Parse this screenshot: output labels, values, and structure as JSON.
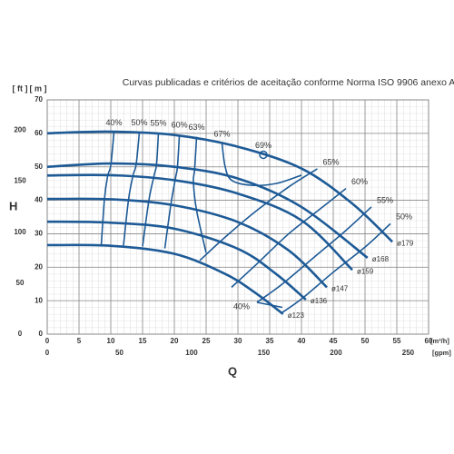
{
  "chart_data": {
    "type": "line",
    "title": "Curvas publicadas e critérios de aceitação conforme Norma ISO 9906 anexo A",
    "x_label": "Q",
    "y_label": "H",
    "x_unit": "[m³/h]",
    "x2_unit": "[gpm]",
    "y_unit": "[ m ]",
    "y2_unit": "[ ft ]",
    "xlim": [
      0,
      60
    ],
    "xticks": [
      0,
      5,
      10,
      15,
      20,
      25,
      30,
      35,
      40,
      45,
      50,
      55,
      60
    ],
    "x2lim": [
      0,
      264.17
    ],
    "x2ticks": [
      0,
      50,
      100,
      150,
      200,
      250
    ],
    "ylim": [
      0,
      70
    ],
    "yticks": [
      0,
      10,
      20,
      30,
      40,
      50,
      60,
      70
    ],
    "y2lim": [
      0,
      229.66
    ],
    "y2ticks": [
      0,
      50,
      100,
      150,
      200
    ],
    "grid": true,
    "series": [
      {
        "name": "ø179",
        "color": "#1d5a96",
        "x": [
          0,
          10,
          20,
          30,
          40,
          48,
          54.3
        ],
        "values": [
          60,
          60.5,
          59.5,
          56,
          49.5,
          39,
          27.6
        ]
      },
      {
        "name": "ø168",
        "color": "#1d5a96",
        "x": [
          0,
          10,
          20,
          30,
          40,
          50.4
        ],
        "values": [
          50,
          51,
          50,
          46.5,
          38,
          22.8
        ]
      },
      {
        "name": "ø159",
        "color": "#1d5a96",
        "x": [
          0,
          10,
          20,
          30,
          40,
          48
        ],
        "values": [
          47.4,
          47.5,
          46,
          42,
          34,
          19.2
        ]
      },
      {
        "name": "ø147",
        "color": "#1d5a96",
        "x": [
          0,
          10,
          20,
          30,
          38,
          44
        ],
        "values": [
          40.4,
          40.3,
          38.5,
          33.5,
          25,
          14
        ]
      },
      {
        "name": "ø136",
        "color": "#1d5a96",
        "x": [
          0,
          10,
          20,
          30,
          36,
          40.7
        ],
        "values": [
          33.6,
          33.3,
          31.5,
          25.5,
          18,
          10.3
        ]
      },
      {
        "name": "ø123",
        "color": "#1d5a96",
        "x": [
          0,
          10,
          20,
          28,
          33,
          37.1
        ],
        "values": [
          26.6,
          26.4,
          24,
          18,
          12,
          6
        ]
      }
    ],
    "efficiency": [
      {
        "name": "40%",
        "x": [
          10.5,
          10,
          9.5,
          9,
          8.5
        ],
        "values": [
          60.3,
          50.5,
          47.2,
          40.2,
          26.5
        ]
      },
      {
        "name": "50%",
        "x": [
          14.5,
          14,
          13.5,
          12.8,
          12
        ],
        "values": [
          60.4,
          50.8,
          47.4,
          40.3,
          26.5
        ]
      },
      {
        "name": "55%",
        "x": [
          17.5,
          17.2,
          16.8,
          16,
          15
        ],
        "values": [
          60.2,
          50.8,
          47.3,
          40,
          26.2
        ]
      },
      {
        "name": "60%",
        "x": [
          20.8,
          20.5,
          20.2,
          19.5,
          18.5
        ],
        "values": [
          59.6,
          50.2,
          46.8,
          39.3,
          25.6
        ]
      },
      {
        "name": "63%",
        "x": [
          23.5,
          23.2,
          23,
          23.5,
          25
        ],
        "values": [
          59,
          49.3,
          45.5,
          37,
          24.3
        ]
      },
      {
        "name": "67%",
        "x": [
          27.5,
          28,
          29,
          32,
          36,
          40
        ],
        "values": [
          57,
          50,
          46,
          44.5,
          45,
          47.5
        ]
      },
      {
        "name": "69%",
        "x": [
          34
        ],
        "values": [
          53.6
        ]
      },
      {
        "name": "65%",
        "x": [
          42.5,
          38,
          33,
          28,
          24
        ],
        "values": [
          49.4,
          44,
          37,
          29,
          22
        ]
      },
      {
        "name": "60%",
        "x": [
          47,
          43,
          38,
          33,
          29
        ],
        "values": [
          43.5,
          37.5,
          30,
          21,
          14
        ]
      },
      {
        "name": "55%",
        "x": [
          51,
          47,
          42,
          37,
          33
        ],
        "values": [
          38,
          31,
          23,
          15,
          9.5
        ]
      },
      {
        "name": "50%",
        "x": [
          54,
          50,
          45,
          40,
          37
        ],
        "values": [
          33,
          26,
          18.5,
          10.5,
          6.5
        ]
      },
      {
        "name": "40%",
        "x": [
          33,
          37
        ],
        "values": [
          9.5,
          8
        ]
      }
    ]
  }
}
